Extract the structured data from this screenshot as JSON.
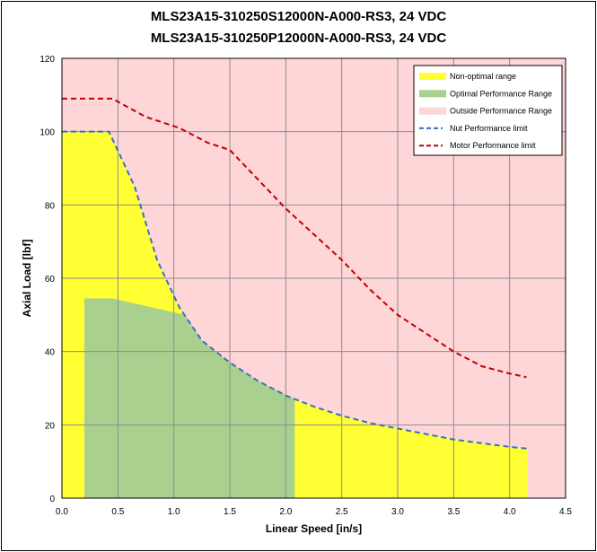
{
  "chart_data": {
    "type": "area",
    "title_lines": [
      "MLS23A15-310250S12000N-A000-RS3, 24 VDC",
      "MLS23A15-310250P12000N-A000-RS3, 24 VDC"
    ],
    "xlabel": "Linear Speed [in/s]",
    "ylabel": "Axial Load [lbf]",
    "xlim": [
      0,
      4.5
    ],
    "ylim": [
      0,
      120
    ],
    "x_ticks": [
      "0.0",
      "0.5",
      "1.0",
      "1.5",
      "2.0",
      "2.5",
      "3.0",
      "3.5",
      "4.0",
      "4.5"
    ],
    "y_ticks": [
      "0",
      "20",
      "40",
      "60",
      "80",
      "100",
      "120"
    ],
    "grid": true,
    "legend_position": "top-right",
    "series": [
      {
        "name": "Non-optimal range",
        "kind": "area",
        "color": "#ffff33",
        "x": [
          0,
          0.42,
          0.65,
          0.85,
          1.05,
          1.25,
          1.5,
          1.75,
          2.0,
          2.25,
          2.5,
          2.75,
          3.0,
          3.25,
          3.5,
          3.75,
          4.0,
          4.16,
          4.16
        ],
        "y": [
          100,
          100,
          85,
          65,
          52,
          43,
          37,
          32,
          28,
          25,
          22.5,
          20.5,
          19,
          17.5,
          16,
          15,
          14,
          13.5,
          0
        ]
      },
      {
        "name": "Optimal Performance Range",
        "kind": "area",
        "color": "#a9d08e",
        "x": [
          0.2,
          0.2,
          0.45,
          1.1,
          1.25,
          1.5,
          1.75,
          2.08,
          2.08
        ],
        "y": [
          0,
          54.5,
          54.5,
          50,
          43,
          37,
          32,
          27,
          0
        ]
      },
      {
        "name": "Outside Performance Range",
        "kind": "background",
        "color": "#ffd6d8"
      },
      {
        "name": "Nut Performance limit",
        "kind": "line",
        "color": "#3a6fbf",
        "x": [
          0,
          0.42,
          0.65,
          0.85,
          1.05,
          1.25,
          1.5,
          1.75,
          2.0,
          2.25,
          2.5,
          2.75,
          3.0,
          3.25,
          3.5,
          3.75,
          4.0,
          4.16
        ],
        "y": [
          100,
          100,
          85,
          65,
          52,
          43,
          37,
          32,
          28,
          25,
          22.5,
          20.5,
          19,
          17.5,
          16,
          15,
          14,
          13.5
        ]
      },
      {
        "name": "Motor Performance limit",
        "kind": "line",
        "color": "#c00000",
        "x": [
          0,
          0.2,
          0.45,
          0.75,
          1.05,
          1.3,
          1.5,
          1.75,
          2.0,
          2.25,
          2.5,
          2.75,
          3.0,
          3.25,
          3.5,
          3.75,
          4.0,
          4.15
        ],
        "y": [
          109,
          109,
          109,
          104,
          101,
          97,
          95,
          87,
          79,
          72,
          65,
          57,
          50,
          45,
          40,
          36,
          34,
          33
        ]
      }
    ]
  }
}
